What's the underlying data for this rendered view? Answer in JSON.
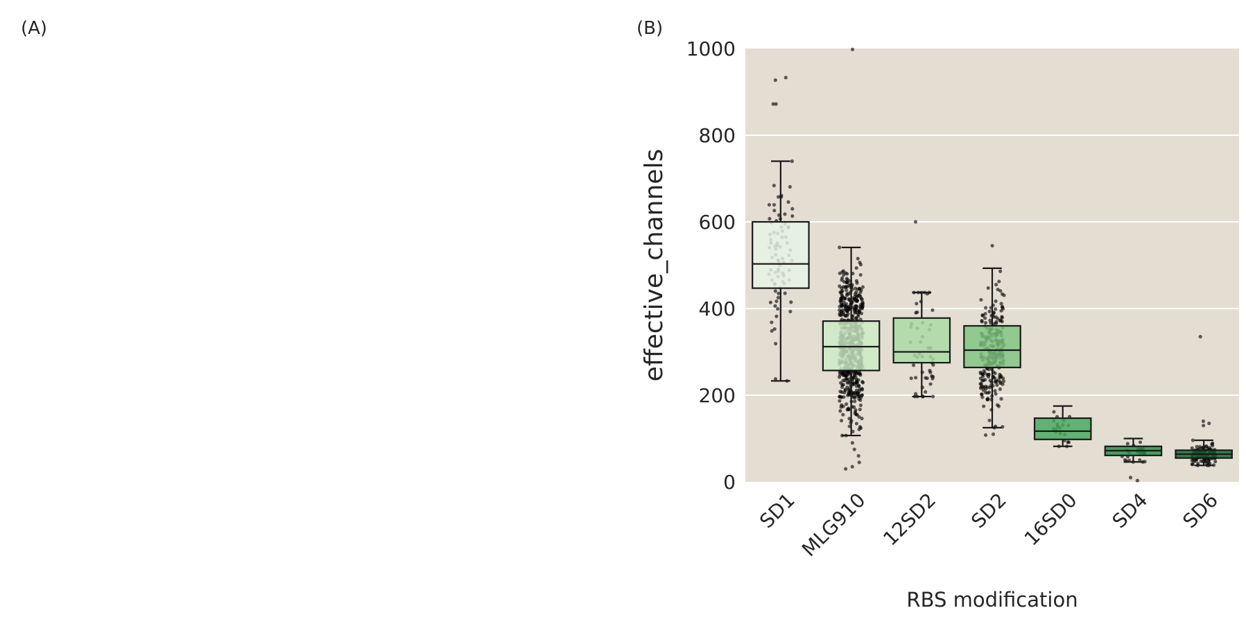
{
  "panels": {
    "a_label": "(A)",
    "b_label": "(B)"
  },
  "chart_data": {
    "type": "box",
    "title": "",
    "xlabel": "RBS modification",
    "ylabel": "effective_channels",
    "ylim": [
      0,
      1000
    ],
    "yticks": [
      0,
      200,
      400,
      600,
      800,
      1000
    ],
    "grid": true,
    "background": "#e4ddd2",
    "categories": [
      "SD1",
      "MLG910",
      "12SD2",
      "SD2",
      "16SD0",
      "SD4",
      "SD6"
    ],
    "boxes": [
      {
        "name": "SD1",
        "whisker_low": 233,
        "q1": 447,
        "median": 503,
        "q3": 600,
        "whisker_high": 740,
        "color": "#e8f5e6",
        "outliers": [
          933,
          927,
          872,
          872
        ],
        "n_points": 80
      },
      {
        "name": "MLG910",
        "whisker_low": 107,
        "q1": 257,
        "median": 312,
        "q3": 371,
        "whisker_high": 541,
        "color": "#cdebc7",
        "outliers": [
          998,
          30,
          35,
          45,
          60,
          75,
          90
        ],
        "n_points": 600
      },
      {
        "name": "12SD2",
        "whisker_low": 197,
        "q1": 275,
        "median": 300,
        "q3": 378,
        "whisker_high": 437,
        "color": "#a9dba3",
        "outliers": [
          600
        ],
        "n_points": 50
      },
      {
        "name": "SD2",
        "whisker_low": 125,
        "q1": 264,
        "median": 304,
        "q3": 360,
        "whisker_high": 493,
        "color": "#7fc480",
        "outliers": [
          545,
          108,
          110
        ],
        "n_points": 250
      },
      {
        "name": "16SD0",
        "whisker_low": 82,
        "q1": 98,
        "median": 117,
        "q3": 147,
        "whisker_high": 175,
        "color": "#46a85e",
        "outliers": [],
        "n_points": 20
      },
      {
        "name": "SD4",
        "whisker_low": 46,
        "q1": 61,
        "median": 72,
        "q3": 82,
        "whisker_high": 100,
        "color": "#2a8c48",
        "outliers": [
          10,
          3
        ],
        "n_points": 25
      },
      {
        "name": "SD6",
        "whisker_low": 38,
        "q1": 55,
        "median": 64,
        "q3": 73,
        "whisker_high": 96,
        "color": "#11682e",
        "outliers": [
          335,
          140,
          135,
          130
        ],
        "n_points": 120
      }
    ]
  }
}
